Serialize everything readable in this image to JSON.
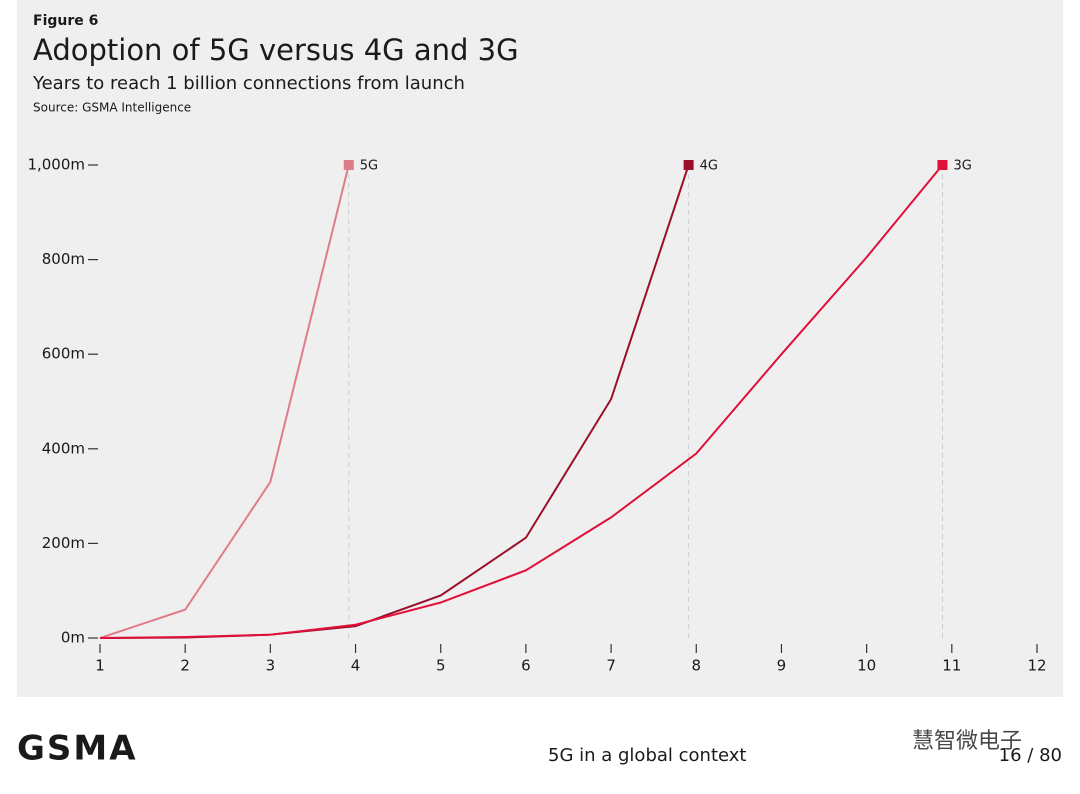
{
  "chart_data": {
    "type": "line",
    "figure_label": "Figure 6",
    "title": "Adoption of 5G versus 4G and 3G",
    "subtitle": "Years to reach 1 billion connections from launch",
    "source": "Source: GSMA Intelligence",
    "xlim": [
      1,
      12
    ],
    "xticks": [
      1,
      2,
      3,
      4,
      5,
      6,
      7,
      8,
      9,
      10,
      11,
      12
    ],
    "ylim": [
      0,
      1000
    ],
    "yticks": [
      {
        "value": 0,
        "label": "0m"
      },
      {
        "value": 200,
        "label": "200m"
      },
      {
        "value": 400,
        "label": "400m"
      },
      {
        "value": 600,
        "label": "600m"
      },
      {
        "value": 800,
        "label": "800m"
      },
      {
        "value": 1000,
        "label": "1,000m"
      }
    ],
    "series": [
      {
        "name": "5G",
        "color": "#e07b8a",
        "x": [
          1,
          2,
          3,
          3.92
        ],
        "values": [
          0,
          60,
          330,
          1000
        ]
      },
      {
        "name": "4G",
        "color": "#9b0f2a",
        "x": [
          1,
          2,
          3,
          4,
          5,
          6,
          7,
          7.91
        ],
        "values": [
          0,
          1,
          7,
          25,
          90,
          212,
          505,
          1000
        ]
      },
      {
        "name": "3G",
        "color": "#e0103a",
        "x": [
          1,
          2,
          3,
          4,
          5,
          6,
          7,
          8,
          9,
          10,
          10.89
        ],
        "values": [
          0,
          2,
          7,
          28,
          75,
          143,
          255,
          390,
          600,
          805,
          1000
        ]
      }
    ]
  },
  "footer": {
    "logo": "GSMA",
    "section": "5G in a global context",
    "page": "16 / 80",
    "watermark": "慧智微电子"
  }
}
